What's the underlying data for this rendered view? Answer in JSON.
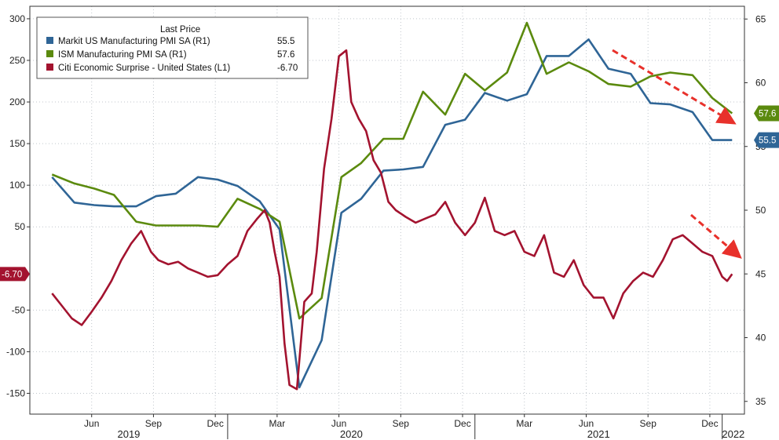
{
  "chart_data": {
    "type": "line",
    "title": "",
    "legend": {
      "header": "Last Price",
      "placement": "top-left",
      "entries": [
        {
          "label": "Markit US Manufacturing PMI SA  (R1)",
          "value": "55.5",
          "color": "#2f6596"
        },
        {
          "label": "ISM Manufacturing PMI SA  (R1)",
          "value": "57.6",
          "color": "#5b8a0e"
        },
        {
          "label": "Citi Economic Surprise - United States  (L1)",
          "value": "-6.70",
          "color": "#a3132f"
        }
      ]
    },
    "x_axis": {
      "month_ticks": [
        "Jun",
        "Sep",
        "Dec",
        "Mar",
        "Jun",
        "Sep",
        "Dec",
        "Mar",
        "Jun",
        "Sep",
        "Dec"
      ],
      "years": [
        "2019",
        "2020",
        "2021",
        "2022"
      ]
    },
    "y_left": {
      "ticks": [
        "300",
        "250",
        "200",
        "150",
        "100",
        "50",
        "-50",
        "-100",
        "-150"
      ],
      "ylim": [
        -175,
        315
      ]
    },
    "y_right": {
      "ticks": [
        "65",
        "60",
        "55",
        "50",
        "45",
        "40",
        "35"
      ],
      "ylim": [
        34,
        66
      ]
    },
    "last_tags": [
      {
        "series": "Citi Economic Surprise - United States  (L1)",
        "text": "-6.70",
        "color": "#a3132f",
        "axis": "left"
      },
      {
        "series": "ISM Manufacturing PMI SA  (R1)",
        "text": "57.6",
        "color": "#5b8a0e",
        "axis": "right"
      },
      {
        "series": "Markit US Manufacturing PMI SA  (R1)",
        "text": "55.5",
        "color": "#2f6596",
        "axis": "right"
      }
    ],
    "series": [
      {
        "name": "Markit US Manufacturing PMI SA  (R1)",
        "axis": "right",
        "color": "#2f6596",
        "x": [
          2019.29,
          2019.38,
          2019.46,
          2019.54,
          2019.63,
          2019.71,
          2019.79,
          2019.88,
          2019.96,
          2020.04,
          2020.13,
          2020.21,
          2020.29,
          2020.38,
          2020.46,
          2020.54,
          2020.63,
          2020.71,
          2020.79,
          2020.88,
          2020.96,
          2021.04,
          2021.13,
          2021.21,
          2021.29,
          2021.38,
          2021.46,
          2021.54,
          2021.63,
          2021.71,
          2021.79,
          2021.88,
          2021.96,
          2022.04
        ],
        "y": [
          52.6,
          50.6,
          50.4,
          50.3,
          50.3,
          51.1,
          51.3,
          52.6,
          52.4,
          51.9,
          50.7,
          48.5,
          36.1,
          39.8,
          49.8,
          50.9,
          53.1,
          53.2,
          53.4,
          56.7,
          57.1,
          59.2,
          58.6,
          59.1,
          62.1,
          62.1,
          63.4,
          61.1,
          60.7,
          58.4,
          58.3,
          57.7,
          55.5,
          55.5
        ]
      },
      {
        "name": "ISM Manufacturing PMI SA  (R1)",
        "axis": "right",
        "color": "#5b8a0e",
        "x": [
          2019.29,
          2019.38,
          2019.46,
          2019.54,
          2019.63,
          2019.71,
          2019.79,
          2019.88,
          2019.96,
          2020.04,
          2020.13,
          2020.21,
          2020.29,
          2020.38,
          2020.46,
          2020.54,
          2020.63,
          2020.71,
          2020.79,
          2020.88,
          2020.96,
          2021.04,
          2021.13,
          2021.21,
          2021.29,
          2021.38,
          2021.46,
          2021.54,
          2021.63,
          2021.71,
          2021.79,
          2021.88,
          2021.96,
          2022.04
        ],
        "y": [
          52.8,
          52.1,
          51.7,
          51.2,
          49.1,
          48.8,
          48.8,
          48.8,
          48.7,
          50.9,
          50.1,
          49.1,
          41.5,
          43.1,
          52.6,
          53.7,
          55.6,
          55.6,
          59.3,
          57.5,
          60.7,
          59.4,
          60.8,
          64.7,
          60.7,
          61.6,
          60.9,
          59.9,
          59.7,
          60.5,
          60.8,
          60.6,
          58.8,
          57.6
        ]
      },
      {
        "name": "Citi Economic Surprise - United States  (L1)",
        "axis": "left",
        "color": "#a3132f",
        "x": [
          2019.29,
          2019.33,
          2019.37,
          2019.41,
          2019.45,
          2019.49,
          2019.53,
          2019.57,
          2019.61,
          2019.65,
          2019.69,
          2019.72,
          2019.76,
          2019.8,
          2019.84,
          2019.88,
          2019.92,
          2019.96,
          2020.0,
          2020.04,
          2020.08,
          2020.12,
          2020.15,
          2020.17,
          2020.19,
          2020.21,
          2020.23,
          2020.25,
          2020.28,
          2020.31,
          2020.34,
          2020.36,
          2020.39,
          2020.42,
          2020.45,
          2020.48,
          2020.5,
          2020.53,
          2020.56,
          2020.59,
          2020.62,
          2020.65,
          2020.68,
          2020.72,
          2020.76,
          2020.8,
          2020.84,
          2020.88,
          2020.92,
          2020.96,
          2021.0,
          2021.04,
          2021.08,
          2021.12,
          2021.16,
          2021.2,
          2021.24,
          2021.28,
          2021.32,
          2021.36,
          2021.4,
          2021.44,
          2021.48,
          2021.52,
          2021.56,
          2021.6,
          2021.64,
          2021.68,
          2021.72,
          2021.76,
          2021.8,
          2021.84,
          2021.88,
          2021.92,
          2021.96,
          2022.0,
          2022.02,
          2022.04
        ],
        "y": [
          -30,
          -45,
          -60,
          -68,
          -52,
          -35,
          -15,
          10,
          30,
          45,
          20,
          10,
          5,
          8,
          0,
          -5,
          -10,
          -8,
          5,
          15,
          45,
          60,
          70,
          55,
          20,
          -10,
          -90,
          -140,
          -145,
          -40,
          -30,
          20,
          120,
          180,
          255,
          262,
          200,
          180,
          165,
          130,
          115,
          80,
          70,
          62,
          55,
          60,
          65,
          80,
          55,
          40,
          55,
          85,
          45,
          40,
          45,
          20,
          15,
          40,
          -5,
          -10,
          10,
          -20,
          -35,
          -35,
          -60,
          -30,
          -15,
          -5,
          -10,
          10,
          35,
          40,
          30,
          20,
          15,
          -10,
          -15,
          -6.7
        ]
      }
    ]
  }
}
